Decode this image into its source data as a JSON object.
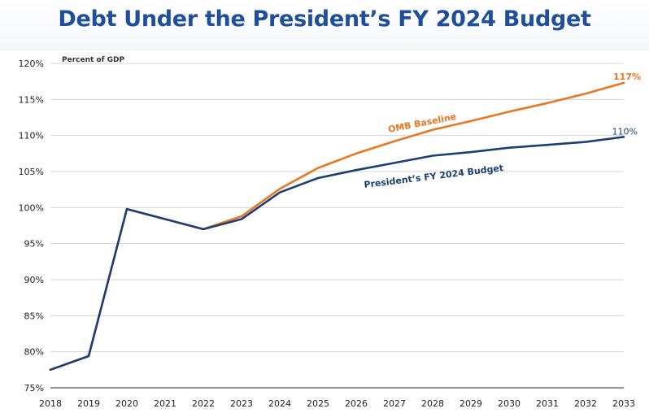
{
  "title": "Debt Under the President’s FY 2024 Budget",
  "chart_data": {
    "type": "line",
    "title": "Debt Under the President’s FY 2024 Budget",
    "ylabel": "Percent of GDP",
    "xlabel": "",
    "x": [
      2018,
      2019,
      2020,
      2021,
      2022,
      2023,
      2024,
      2025,
      2026,
      2027,
      2028,
      2029,
      2030,
      2031,
      2032,
      2033
    ],
    "x_tick_labels": [
      "2018",
      "2019",
      "2020",
      "2021",
      "2022",
      "2023",
      "2024",
      "2025",
      "2026",
      "2027",
      "2028",
      "2029",
      "2030",
      "2031",
      "2032",
      "2033"
    ],
    "ylim": [
      75,
      120
    ],
    "y_ticks": [
      75,
      80,
      85,
      90,
      95,
      100,
      105,
      110,
      115,
      120
    ],
    "y_tick_labels": [
      "75%",
      "80%",
      "85%",
      "90%",
      "95%",
      "100%",
      "105%",
      "110%",
      "115%",
      "120%"
    ],
    "grid": true,
    "series": [
      {
        "name": "OMB Baseline",
        "color": "#e87722",
        "end_label": "117%",
        "values": [
          77.5,
          79.4,
          99.8,
          null,
          97.0,
          98.8,
          102.6,
          105.5,
          107.5,
          109.2,
          110.8,
          112.0,
          113.3,
          114.5,
          115.8,
          117.3
        ]
      },
      {
        "name": "President’s FY 2024 Budget",
        "color": "#1b3f73",
        "end_label": "110%",
        "values": [
          77.5,
          79.4,
          99.8,
          null,
          97.0,
          98.4,
          102.1,
          104.1,
          105.2,
          106.2,
          107.2,
          107.7,
          108.3,
          108.7,
          109.1,
          109.8
        ]
      }
    ]
  }
}
